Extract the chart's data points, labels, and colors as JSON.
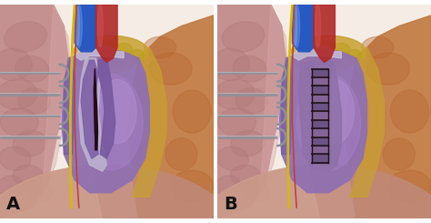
{
  "figsize": [
    4.74,
    2.45
  ],
  "dpi": 100,
  "overall_bg": "#ffffff",
  "label_fontsize": 14,
  "label_fontweight": "bold",
  "label_color": "#111111",
  "bg_color": "#f8ede8",
  "lung_left_color": "#c49090",
  "lung_right_color": "#c89898",
  "lung_texture_color": "#a87070",
  "heart_color": "#9878b8",
  "heart_light_color": "#b898d0",
  "heart_dark_color": "#7858a0",
  "pericardium_orange": "#c89060",
  "fat_yellow": "#d4b840",
  "fat_color": "#c8a830",
  "svc_blue": "#3055bb",
  "svc_blue_light": "#5080d8",
  "aorta_red": "#b83028",
  "vessel_red": "#c04040",
  "nerve_yellow": "#d4b810",
  "nerve_red": "#b02020",
  "retractor_color": "#909098",
  "retractor_light": "#c0c0c8",
  "diaphragm_color": "#b87868",
  "tear_dark": "#2a1020",
  "tear_color": "#6a2840",
  "suture_dark": "#201018",
  "suture_color": "#504060",
  "white_pericardium": "#d8d0e0"
}
